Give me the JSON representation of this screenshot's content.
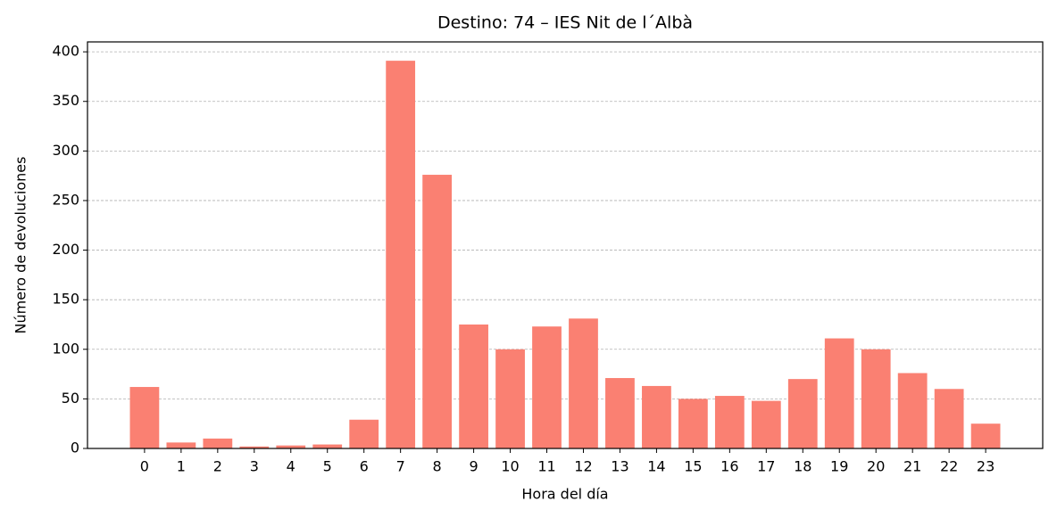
{
  "chart_data": {
    "type": "bar",
    "title": "Destino: 74 – IES Nit de l´Albà",
    "x_label": "Hora del día",
    "y_label": "Número de devoluciones",
    "categories": [
      "0",
      "1",
      "2",
      "3",
      "4",
      "5",
      "6",
      "7",
      "8",
      "9",
      "10",
      "11",
      "12",
      "13",
      "14",
      "15",
      "16",
      "17",
      "18",
      "19",
      "20",
      "21",
      "22",
      "23"
    ],
    "values": [
      62,
      6,
      10,
      2,
      3,
      4,
      29,
      391,
      276,
      125,
      100,
      123,
      131,
      71,
      63,
      50,
      53,
      48,
      70,
      111,
      100,
      76,
      60,
      25
    ],
    "color": "#fa8072",
    "ylim": [
      0,
      410
    ],
    "yticks": [
      0,
      50,
      100,
      150,
      200,
      250,
      300,
      350,
      400
    ],
    "grid": true
  }
}
